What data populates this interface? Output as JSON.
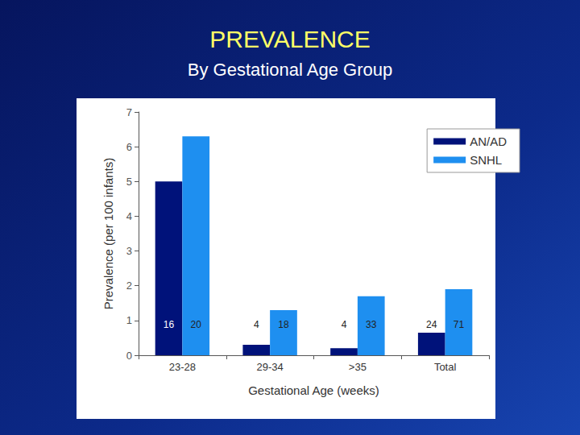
{
  "chart_data": {
    "type": "bar",
    "title": "PREVALENCE",
    "subtitle": "By Gestational Age Group",
    "x_label": "Gestational Age (weeks)",
    "y_label": "Prevalence (per 100 infants)",
    "categories": [
      "23-28",
      "29-34",
      ">35",
      "Total"
    ],
    "series": [
      {
        "name": "AN/AD",
        "color": "#00127a",
        "values": [
          5.0,
          0.3,
          0.2,
          0.65
        ],
        "counts": [
          16,
          4,
          4,
          24
        ]
      },
      {
        "name": "SNHL",
        "color": "#1e8ff0",
        "values": [
          6.3,
          1.3,
          1.7,
          1.9
        ],
        "counts": [
          20,
          18,
          33,
          71
        ]
      }
    ],
    "ylim": [
      0,
      7
    ],
    "yticks": [
      0,
      1,
      2,
      3,
      4,
      5,
      6,
      7
    ],
    "grid": false,
    "legend": "upper right"
  }
}
